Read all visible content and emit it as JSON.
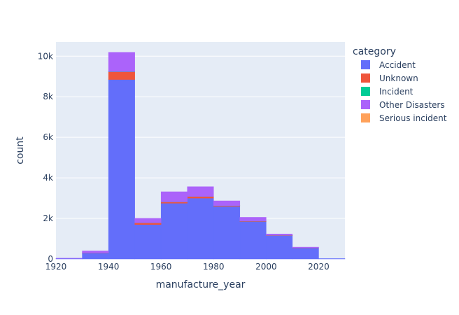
{
  "chart_data": {
    "type": "bar",
    "stacked": true,
    "xlabel": "manufacture_year",
    "ylabel": "count",
    "legend_title": "category",
    "legend_position": "right",
    "grid": true,
    "bin_edges": [
      1920,
      1930,
      1940,
      1950,
      1960,
      1970,
      1980,
      1990,
      2000,
      2010,
      2020,
      2030
    ],
    "xlim": [
      1920,
      2030
    ],
    "ylim": [
      0,
      10700
    ],
    "x_ticks": [
      1920,
      1940,
      1960,
      1980,
      2000,
      2020
    ],
    "x_tick_labels": [
      "1920",
      "1940",
      "1960",
      "1980",
      "2000",
      "2020"
    ],
    "y_ticks": [
      0,
      2000,
      4000,
      6000,
      8000,
      10000
    ],
    "y_tick_labels": [
      "0",
      "2k",
      "4k",
      "6k",
      "8k",
      "10k"
    ],
    "series": [
      {
        "name": "Accident",
        "color": "#636efa",
        "values": [
          30,
          300,
          8850,
          1700,
          2750,
          3000,
          2600,
          1850,
          1150,
          550,
          20
        ]
      },
      {
        "name": "Unknown",
        "color": "#EF553B",
        "values": [
          0,
          10,
          380,
          80,
          60,
          80,
          30,
          20,
          10,
          5,
          0
        ]
      },
      {
        "name": "Incident",
        "color": "#00cc96",
        "values": [
          0,
          0,
          10,
          5,
          5,
          5,
          5,
          5,
          5,
          0,
          0
        ]
      },
      {
        "name": "Other Disasters",
        "color": "#ab63fa",
        "values": [
          10,
          90,
          950,
          220,
          500,
          480,
          230,
          180,
          70,
          30,
          0
        ]
      },
      {
        "name": "Serious incident",
        "color": "#FFA15A",
        "values": [
          0,
          0,
          0,
          0,
          0,
          0,
          0,
          0,
          0,
          0,
          0
        ]
      }
    ],
    "plot_background": "#e5ecf6"
  }
}
